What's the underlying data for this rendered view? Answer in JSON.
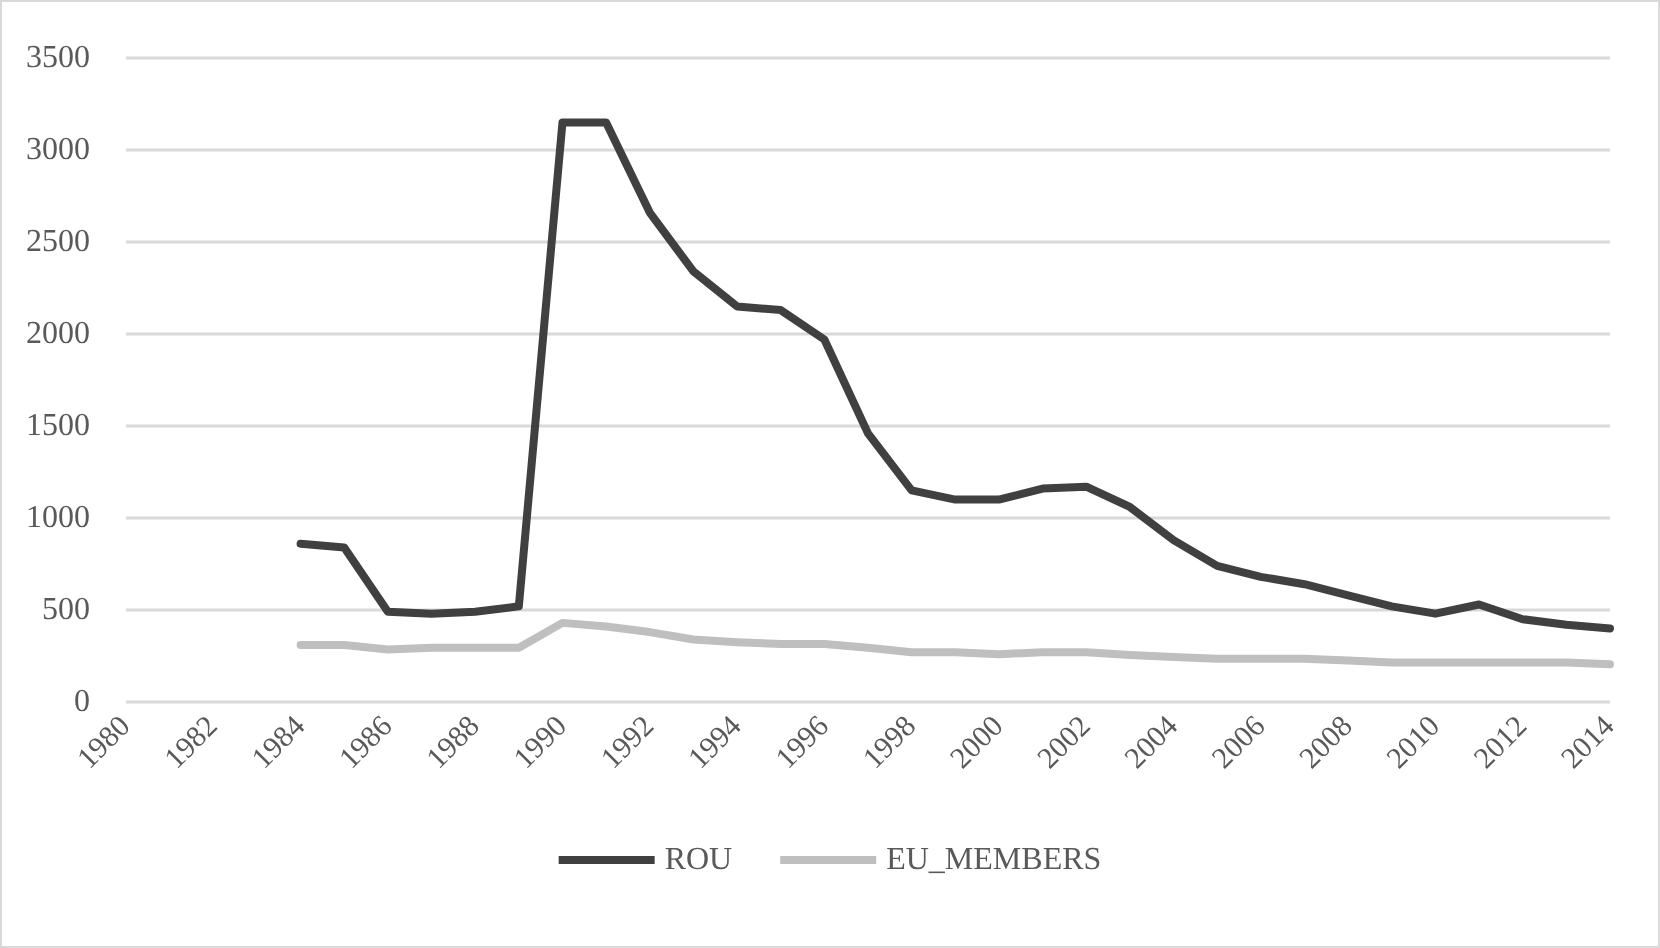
{
  "chart_data": {
    "type": "line",
    "categories": [
      "1980",
      null,
      "1982",
      null,
      "1984",
      null,
      "1986",
      null,
      "1988",
      null,
      "1990",
      null,
      "1992",
      null,
      "1994",
      null,
      "1996",
      null,
      "1998",
      null,
      "2000",
      null,
      "2002",
      null,
      "2004",
      null,
      "2006",
      null,
      "2008",
      null,
      "2010",
      null,
      "2012",
      null,
      "2014"
    ],
    "series": [
      {
        "name": "ROU",
        "color": "#404040",
        "values": [
          null,
          null,
          null,
          null,
          860,
          840,
          490,
          480,
          490,
          520,
          3150,
          3150,
          2660,
          2340,
          2150,
          2130,
          1970,
          1460,
          1150,
          1100,
          1100,
          1160,
          1170,
          1060,
          880,
          740,
          680,
          640,
          580,
          520,
          480,
          530,
          450,
          420,
          400
        ]
      },
      {
        "name": "EU_MEMBERS",
        "color": "#bfbfbf",
        "values": [
          null,
          null,
          null,
          null,
          310,
          310,
          285,
          295,
          295,
          295,
          430,
          410,
          380,
          340,
          325,
          315,
          315,
          295,
          270,
          270,
          260,
          270,
          270,
          255,
          245,
          235,
          235,
          235,
          225,
          215,
          215,
          215,
          215,
          215,
          205
        ]
      }
    ],
    "ylim": [
      0,
      3500
    ],
    "yticks": [
      0,
      500,
      1000,
      1500,
      2000,
      2500,
      3000,
      3500
    ],
    "grid": "y",
    "legend": "bottom",
    "marker": "none",
    "line_style": "solid"
  }
}
